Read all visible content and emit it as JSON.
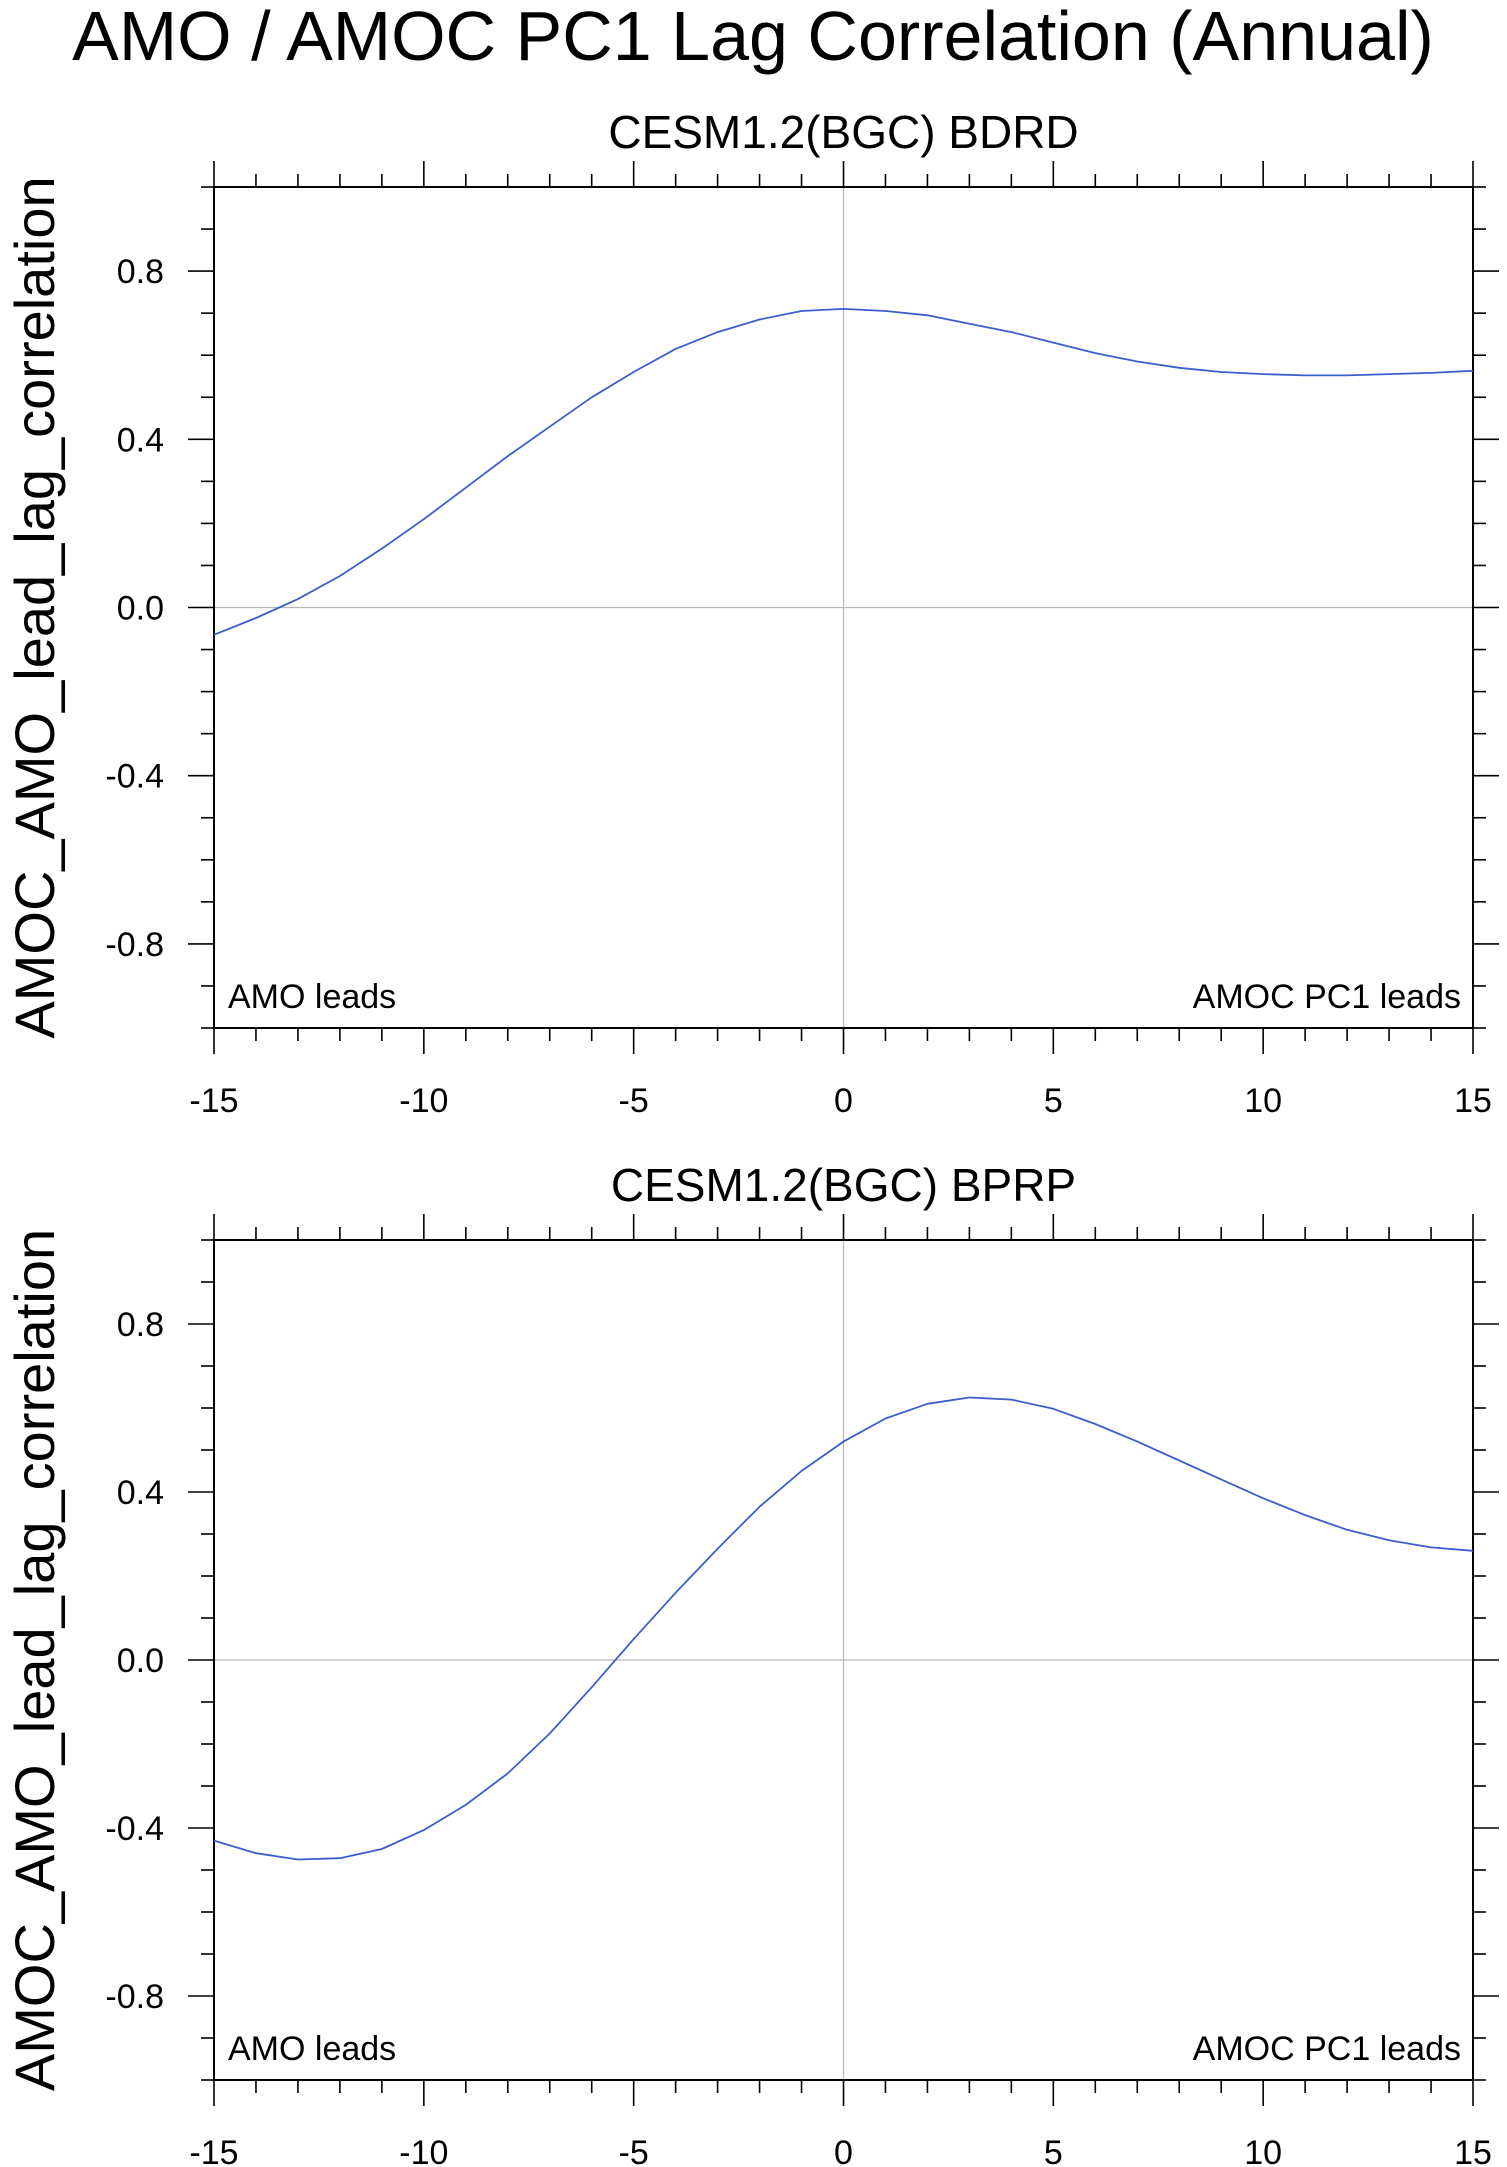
{
  "figure": {
    "title": "AMO / AMOC PC1 Lag Correlation (Annual)"
  },
  "chart_data": [
    {
      "type": "line",
      "title": "CESM1.2(BGC) BDRD",
      "xlabel": "",
      "ylabel": "AMOC_AMO_lead_lag_correlation",
      "xlim": [
        -15,
        15
      ],
      "ylim": [
        -1.0,
        1.0
      ],
      "x_ticks": [
        -15,
        -10,
        -5,
        0,
        5,
        10,
        15
      ],
      "y_ticks": [
        -0.8,
        -0.4,
        0.0,
        0.4,
        0.8
      ],
      "x_tick_labels": [
        "-15",
        "-10",
        "-5",
        "0",
        "5",
        "10",
        "15"
      ],
      "y_tick_labels": [
        "-0.8",
        "-0.4",
        "0.0",
        "0.4",
        "0.8"
      ],
      "reference_lines": {
        "x": 0,
        "y": 0
      },
      "annotations": {
        "left": "AMO leads",
        "right": "AMOC PC1 leads"
      },
      "line_color": "#3a5fcd",
      "series": [
        {
          "x": [
            -15,
            -14,
            -13,
            -12,
            -11,
            -10,
            -9,
            -8,
            -7,
            -6,
            -5,
            -4,
            -3,
            -2,
            -1,
            0,
            1,
            2,
            3,
            4,
            5,
            6,
            7,
            8,
            9,
            10,
            11,
            12,
            13,
            14,
            15
          ],
          "values": [
            -0.065,
            -0.025,
            0.02,
            0.075,
            0.14,
            0.21,
            0.285,
            0.36,
            0.43,
            0.5,
            0.56,
            0.615,
            0.655,
            0.685,
            0.705,
            0.71,
            0.705,
            0.695,
            0.675,
            0.655,
            0.63,
            0.605,
            0.585,
            0.57,
            0.56,
            0.555,
            0.552,
            0.552,
            0.555,
            0.558,
            0.563
          ]
        }
      ]
    },
    {
      "type": "line",
      "title": "CESM1.2(BGC) BPRP",
      "xlabel": "",
      "ylabel": "AMOC_AMO_lead_lag_correlation",
      "xlim": [
        -15,
        15
      ],
      "ylim": [
        -1.0,
        1.0
      ],
      "x_ticks": [
        -15,
        -10,
        -5,
        0,
        5,
        10,
        15
      ],
      "y_ticks": [
        -0.8,
        -0.4,
        0.0,
        0.4,
        0.8
      ],
      "x_tick_labels": [
        "-15",
        "-10",
        "-5",
        "0",
        "5",
        "10",
        "15"
      ],
      "y_tick_labels": [
        "-0.8",
        "-0.4",
        "0.0",
        "0.4",
        "0.8"
      ],
      "reference_lines": {
        "x": 0,
        "y": 0
      },
      "annotations": {
        "left": "AMO leads",
        "right": "AMOC PC1 leads"
      },
      "line_color": "#3a5fcd",
      "series": [
        {
          "x": [
            -15,
            -14,
            -13,
            -12,
            -11,
            -10,
            -9,
            -8,
            -7,
            -6,
            -5,
            -4,
            -3,
            -2,
            -1,
            0,
            1,
            2,
            3,
            4,
            5,
            6,
            7,
            8,
            9,
            10,
            11,
            12,
            13,
            14,
            15
          ],
          "values": [
            -0.43,
            -0.46,
            -0.475,
            -0.472,
            -0.45,
            -0.405,
            -0.345,
            -0.27,
            -0.175,
            -0.065,
            0.05,
            0.16,
            0.265,
            0.365,
            0.45,
            0.52,
            0.575,
            0.61,
            0.625,
            0.62,
            0.598,
            0.562,
            0.52,
            0.475,
            0.43,
            0.385,
            0.345,
            0.31,
            0.285,
            0.268,
            0.26
          ]
        }
      ]
    }
  ]
}
